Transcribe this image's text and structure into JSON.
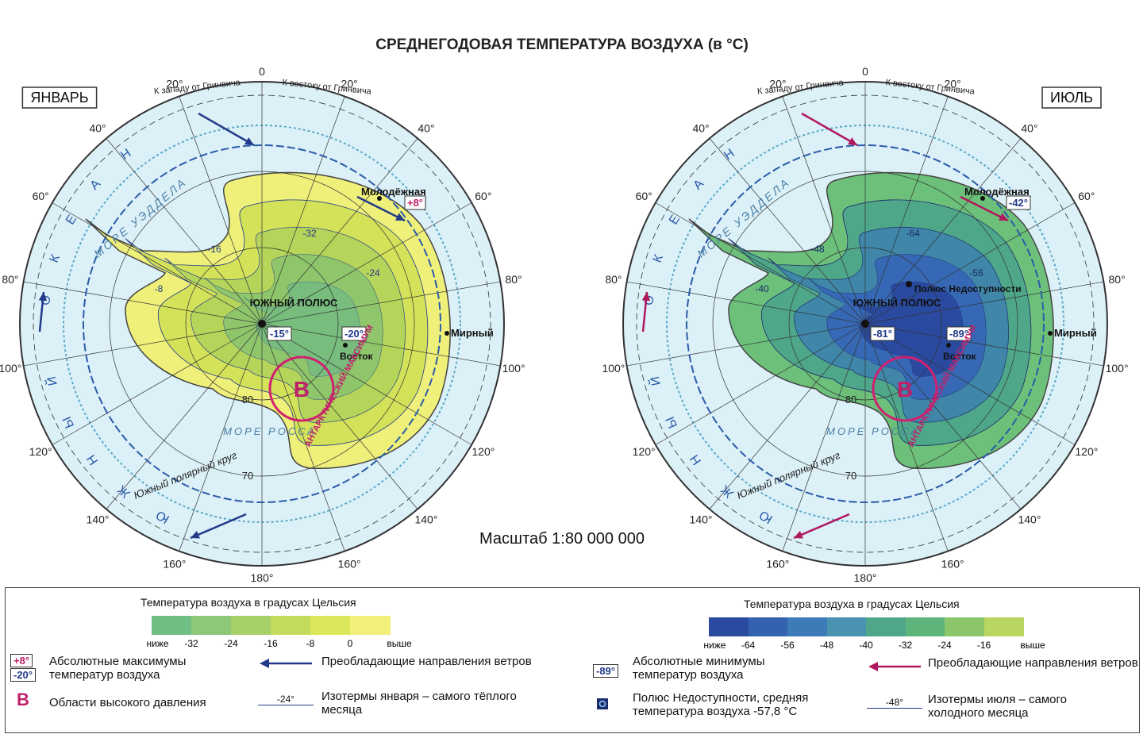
{
  "title": "СРЕДНЕГОДОВАЯ ТЕМПЕРАТУРА ВОЗДУХА (в °C)",
  "scale": "Масштаб 1:80 000 000",
  "maps": [
    {
      "month": "ЯНВАРЬ",
      "west_of_greenwich": "К западу от Гринвича",
      "east_of_greenwich": "К востоку от Гринвича",
      "meridian_zero": "0",
      "meridians_west": [
        "20°",
        "40°",
        "60°",
        "80°",
        "100°",
        "120°",
        "140°",
        "160°"
      ],
      "meridians_east": [
        "20°",
        "40°",
        "60°",
        "80°",
        "100°",
        "120°",
        "140°",
        "160°"
      ],
      "meridian_180": "180°",
      "latitudes": [
        "80",
        "70"
      ],
      "sea_weddell": "МОРЕ УЭДДЕЛА",
      "sea_ross": "МОРЕ РОССА",
      "polar_circle": "Южный полярный круг",
      "ocean": "ЮЖНЫЙ ОКЕАН",
      "pole": "ЮЖНЫЙ ПОЛЮС",
      "pole_temp": "-15°",
      "station_molodezhnaya": "Молодёжная",
      "station_molodezhnaya_temp": "+8°",
      "station_mirny": "Мирный",
      "station_vostok": "Восток",
      "station_vostok_temp": "-20°",
      "high": "В",
      "high_label": "АНТАРКТИЧЕСКИЙ МАКСИМУМ",
      "isotherms": [
        "-8",
        "-16",
        "-24",
        "-32"
      ]
    },
    {
      "month": "ИЮЛЬ",
      "west_of_greenwich": "К западу от Гринвича",
      "east_of_greenwich": "К востоку от Гринвича",
      "meridian_zero": "0",
      "meridians_west": [
        "20°",
        "40°",
        "60°",
        "80°",
        "100°",
        "120°",
        "140°",
        "160°"
      ],
      "meridians_east": [
        "20°",
        "40°",
        "60°",
        "80°",
        "100°",
        "120°",
        "140°",
        "160°"
      ],
      "meridian_180": "180°",
      "latitudes": [
        "80",
        "70"
      ],
      "sea_weddell": "МОРЕ УЭДДЕЛА",
      "sea_ross": "МОРЕ РОССА",
      "polar_circle": "Южный полярный круг",
      "ocean": "ЮЖНЫЙ ОКЕАН",
      "pole": "ЮЖНЫЙ ПОЛЮС",
      "pole_temp": "-81°",
      "station_molodezhnaya": "Молодёжная",
      "station_molodezhnaya_temp": "-42°",
      "station_mirny": "Мирный",
      "station_vostok": "Восток",
      "station_vostok_temp": "-89°",
      "inaccessibility": "Полюс Недоступности",
      "high": "В",
      "high_label": "АНТАРКТИЧЕСКИЙ МАКСИМУМ",
      "isotherms": [
        "-40",
        "-48",
        "-56",
        "-64"
      ]
    }
  ],
  "legend": {
    "january": {
      "scale_title": "Температура воздуха в градусах Цельсия",
      "scale_labels": [
        "ниже",
        "-32",
        "-24",
        "-16",
        "-8",
        "0",
        "выше"
      ],
      "abs_max": [
        "+8°",
        "-20°"
      ],
      "abs_max_text": "Абсолютные максимумы температур воздуха",
      "winds_text": "Преобладающие направления ветров",
      "high_symbol": "В",
      "high_text": "Области высокого давления",
      "isotherm_sample": "-24°",
      "isotherm_text": "Изотермы января – самого тёплого месяца"
    },
    "july": {
      "scale_title": "Температура воздуха в градусах Цельсия",
      "scale_labels": [
        "ниже",
        "-64",
        "-56",
        "-48",
        "-40",
        "-32",
        "-24",
        "-16",
        "выше"
      ],
      "abs_min": "-89°",
      "abs_min_text": "Абсолютные минимумы температур воздуха",
      "winds_text": "Преобладающие направления ветров",
      "inaccessibility_text": "Полюс Недоступности, средняя температура воздуха -57,8 °С",
      "isotherm_sample": "-48°",
      "isotherm_text": "Изотермы июля – самого холодного месяца"
    }
  }
}
